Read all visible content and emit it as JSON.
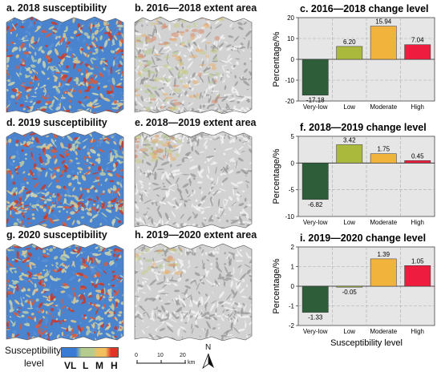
{
  "maps": [
    {
      "title": "a. 2018 susceptibility",
      "kind": "susceptibility",
      "seed": 3
    },
    {
      "title": "b. 2016—2018 extent area",
      "kind": "extent",
      "seed": 11
    },
    {
      "title": "d. 2019 susceptibility",
      "kind": "susceptibility",
      "seed": 5
    },
    {
      "title": "e. 2018—2019 extent area",
      "kind": "extent",
      "seed": 17
    },
    {
      "title": "g. 2020 susceptibility",
      "kind": "susceptibility",
      "seed": 7
    },
    {
      "title": "h. 2019—2020 extent area",
      "kind": "extent",
      "seed": 23
    }
  ],
  "chart_data": [
    {
      "type": "bar",
      "title": "c. 2016—2018 change level",
      "categories": [
        "Very-low",
        "Low",
        "Moderate",
        "High"
      ],
      "values": [
        -17.18,
        6.2,
        15.94,
        7.04
      ],
      "value_labels": [
        "-17.18",
        "6.20",
        "15.94",
        "7.04"
      ],
      "ylabel": "Percentage/%",
      "xlabel": "",
      "ylim": [
        -20,
        20
      ],
      "yticks": [
        -20,
        -10,
        0,
        10,
        20
      ],
      "grid": true
    },
    {
      "type": "bar",
      "title": "f. 2018—2019 change level",
      "categories": [
        "Very-low",
        "Low",
        "Moderate",
        "High"
      ],
      "values": [
        -6.82,
        3.42,
        1.75,
        0.45
      ],
      "value_labels": [
        "-6.82",
        "3.42",
        "1.75",
        "0.45"
      ],
      "ylabel": "Percentage/%",
      "xlabel": "",
      "ylim": [
        -10,
        5
      ],
      "yticks": [
        -10,
        -5,
        0,
        5
      ],
      "grid": true
    },
    {
      "type": "bar",
      "title": "i. 2019—2020 change level",
      "categories": [
        "Very-low",
        "Low",
        "Moderate",
        "High"
      ],
      "values": [
        -1.33,
        -0.05,
        1.39,
        1.05
      ],
      "value_labels": [
        "-1.33",
        "-0.05",
        "1.39",
        "1.05"
      ],
      "ylabel": "Percentage/%",
      "xlabel": "Susceptibility level",
      "ylim": [
        -2,
        2
      ],
      "yticks": [
        -2,
        -1,
        0,
        1,
        2
      ],
      "grid": true
    }
  ],
  "bar_colors": [
    "#2e5d3a",
    "#aab83c",
    "#f2b33c",
    "#ee1c3e"
  ],
  "legend": {
    "title_line1": "Susceptibility",
    "title_line2": "level",
    "colors": [
      "#3a7bd5",
      "#b5cc8e",
      "#f3c060",
      "#e33428"
    ],
    "labels": [
      "VL",
      "L",
      "M",
      "H"
    ]
  },
  "scale_bar": {
    "ticks": [
      "0",
      "10",
      "20"
    ],
    "unit": "km"
  },
  "north_arrow": {
    "label": "N"
  }
}
